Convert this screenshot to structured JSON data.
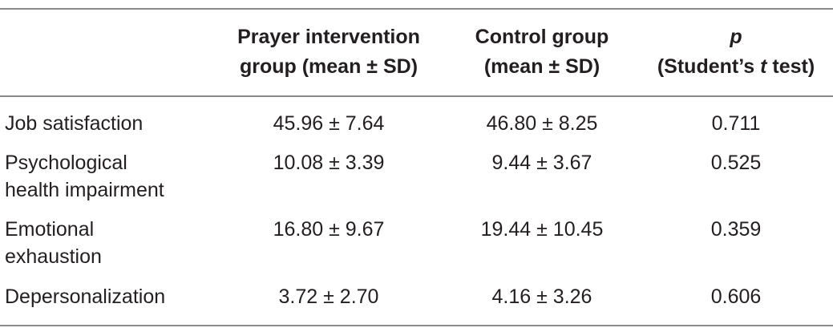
{
  "table": {
    "headers": [
      {
        "lines": [
          ""
        ]
      },
      {
        "lines": [
          "Prayer intervention",
          "group (mean ± SD)"
        ]
      },
      {
        "lines": [
          "Control group",
          "(mean ± SD)"
        ]
      },
      {
        "p": "p",
        "pre": "(Student’s ",
        "t": "t",
        "post": " test)"
      }
    ],
    "rows": [
      {
        "label": [
          "Job satisfaction"
        ],
        "prayer": "45.96 ± 7.64",
        "control": "46.80 ± 8.25",
        "p": "0.711"
      },
      {
        "label": [
          "Psychological",
          "health impairment"
        ],
        "prayer": "10.08 ± 3.39",
        "control": "9.44 ± 3.67",
        "p": "0.525"
      },
      {
        "label": [
          "Emotional",
          "exhaustion"
        ],
        "prayer": "16.80 ± 9.67",
        "control": "19.44 ± 10.45",
        "p": "0.359"
      },
      {
        "label": [
          "Depersonalization"
        ],
        "prayer": "3.72 ± 2.70",
        "control": "4.16 ± 3.26",
        "p": "0.606"
      }
    ]
  }
}
